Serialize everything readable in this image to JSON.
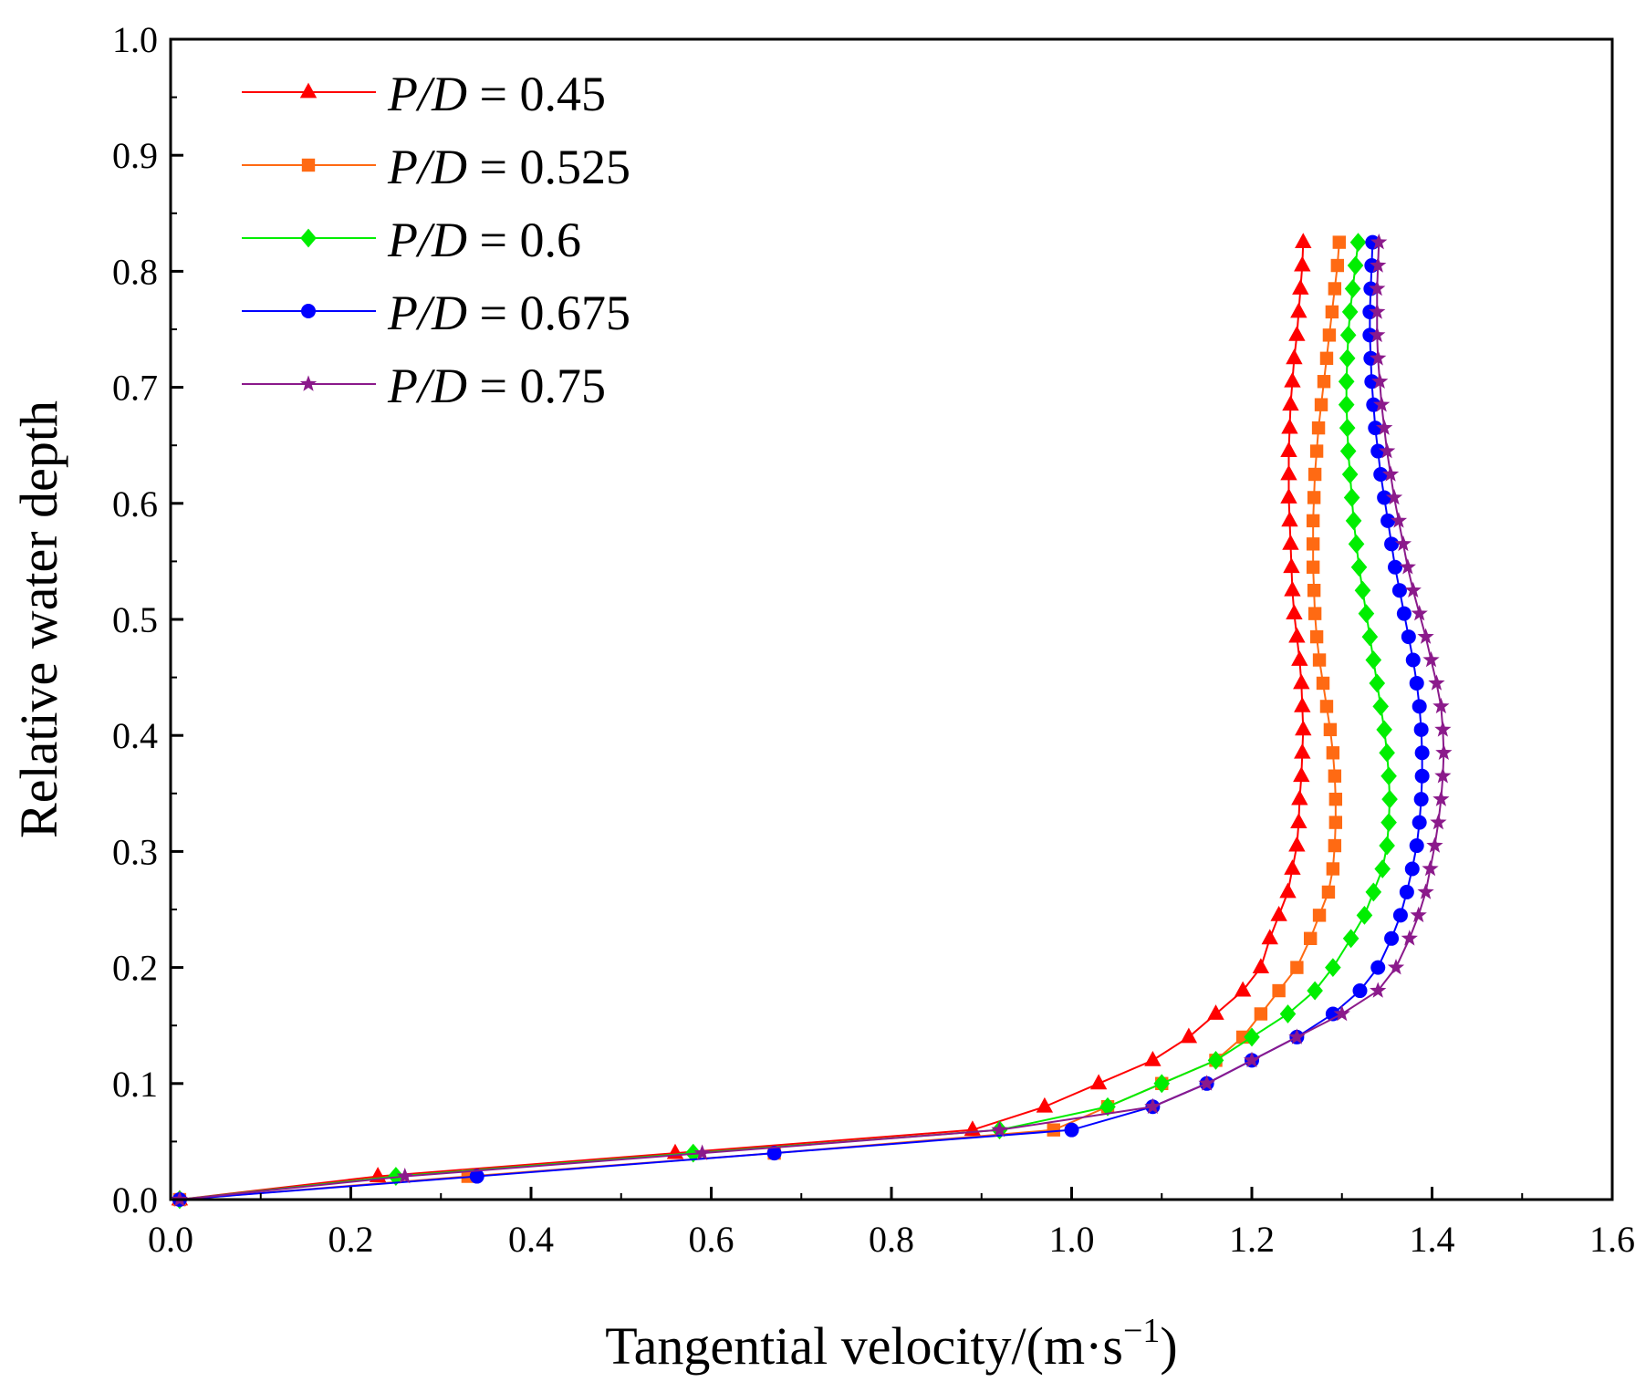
{
  "chart_data": {
    "type": "line",
    "title": "",
    "xlabel": "Tangential velocity/(m·s",
    "xlabel_sup": "−1",
    "xlabel_close": ")",
    "ylabel": "Relative water depth",
    "xlim": [
      0.0,
      1.6
    ],
    "ylim": [
      0.0,
      1.0
    ],
    "x_ticks": [
      "0.0",
      "0.2",
      "0.4",
      "0.6",
      "0.8",
      "1.0",
      "1.2",
      "1.4",
      "1.6"
    ],
    "y_ticks": [
      "0.0",
      "0.1",
      "0.2",
      "0.3",
      "0.4",
      "0.5",
      "0.6",
      "0.7",
      "0.8",
      "0.9",
      "1.0"
    ],
    "grid": false,
    "legend_position": "top-left",
    "series": [
      {
        "name": "0.45",
        "legend_prefix": "P/D",
        "color": "#ff0000",
        "marker": "triangle",
        "x": [
          0.01,
          0.23,
          0.56,
          0.89,
          0.97,
          1.03,
          1.09,
          1.13,
          1.16,
          1.19,
          1.21,
          1.22,
          1.23,
          1.24,
          1.245,
          1.25,
          1.252,
          1.253,
          1.255,
          1.256,
          1.257,
          1.256,
          1.255,
          1.253,
          1.25,
          1.247,
          1.245,
          1.244,
          1.243,
          1.242,
          1.241,
          1.241,
          1.241,
          1.242,
          1.243,
          1.245,
          1.247,
          1.25,
          1.252,
          1.254,
          1.256,
          1.257
        ],
        "y": [
          0.0,
          0.02,
          0.04,
          0.06,
          0.08,
          0.1,
          0.12,
          0.14,
          0.16,
          0.18,
          0.2,
          0.225,
          0.245,
          0.265,
          0.285,
          0.305,
          0.325,
          0.345,
          0.365,
          0.385,
          0.405,
          0.425,
          0.445,
          0.465,
          0.485,
          0.505,
          0.525,
          0.545,
          0.565,
          0.585,
          0.605,
          0.625,
          0.645,
          0.665,
          0.685,
          0.705,
          0.725,
          0.745,
          0.765,
          0.785,
          0.805,
          0.825
        ]
      },
      {
        "name": "0.525",
        "legend_prefix": "P/D",
        "color": "#ff6a13",
        "marker": "square",
        "x": [
          0.01,
          0.33,
          0.67,
          0.98,
          1.04,
          1.1,
          1.16,
          1.19,
          1.21,
          1.23,
          1.25,
          1.265,
          1.275,
          1.285,
          1.29,
          1.292,
          1.293,
          1.293,
          1.292,
          1.29,
          1.287,
          1.283,
          1.279,
          1.275,
          1.272,
          1.27,
          1.269,
          1.268,
          1.268,
          1.268,
          1.269,
          1.27,
          1.272,
          1.274,
          1.277,
          1.28,
          1.283,
          1.286,
          1.289,
          1.292,
          1.295,
          1.297
        ],
        "y": [
          0.0,
          0.02,
          0.04,
          0.06,
          0.08,
          0.1,
          0.12,
          0.14,
          0.16,
          0.18,
          0.2,
          0.225,
          0.245,
          0.265,
          0.285,
          0.305,
          0.325,
          0.345,
          0.365,
          0.385,
          0.405,
          0.425,
          0.445,
          0.465,
          0.485,
          0.505,
          0.525,
          0.545,
          0.565,
          0.585,
          0.605,
          0.625,
          0.645,
          0.665,
          0.685,
          0.705,
          0.725,
          0.745,
          0.765,
          0.785,
          0.805,
          0.825
        ]
      },
      {
        "name": "0.6",
        "legend_prefix": "P/D",
        "color": "#00ee00",
        "marker": "diamond",
        "x": [
          0.01,
          0.25,
          0.58,
          0.92,
          1.04,
          1.1,
          1.16,
          1.2,
          1.24,
          1.27,
          1.29,
          1.31,
          1.325,
          1.335,
          1.345,
          1.35,
          1.352,
          1.353,
          1.352,
          1.35,
          1.347,
          1.343,
          1.339,
          1.335,
          1.331,
          1.327,
          1.323,
          1.319,
          1.316,
          1.313,
          1.311,
          1.309,
          1.307,
          1.306,
          1.305,
          1.305,
          1.306,
          1.307,
          1.309,
          1.312,
          1.315,
          1.318
        ],
        "y": [
          0.0,
          0.02,
          0.04,
          0.06,
          0.08,
          0.1,
          0.12,
          0.14,
          0.16,
          0.18,
          0.2,
          0.225,
          0.245,
          0.265,
          0.285,
          0.305,
          0.325,
          0.345,
          0.365,
          0.385,
          0.405,
          0.425,
          0.445,
          0.465,
          0.485,
          0.505,
          0.525,
          0.545,
          0.565,
          0.585,
          0.605,
          0.625,
          0.645,
          0.665,
          0.685,
          0.705,
          0.725,
          0.745,
          0.765,
          0.785,
          0.805,
          0.825
        ]
      },
      {
        "name": "0.675",
        "legend_prefix": "P/D",
        "color": "#0000ff",
        "marker": "circle",
        "x": [
          0.01,
          0.34,
          0.67,
          1.0,
          1.09,
          1.15,
          1.2,
          1.25,
          1.29,
          1.32,
          1.34,
          1.355,
          1.365,
          1.372,
          1.378,
          1.383,
          1.386,
          1.388,
          1.389,
          1.389,
          1.388,
          1.386,
          1.383,
          1.379,
          1.374,
          1.369,
          1.364,
          1.359,
          1.355,
          1.351,
          1.347,
          1.343,
          1.34,
          1.337,
          1.335,
          1.333,
          1.332,
          1.331,
          1.331,
          1.332,
          1.333,
          1.334
        ],
        "y": [
          0.0,
          0.02,
          0.04,
          0.06,
          0.08,
          0.1,
          0.12,
          0.14,
          0.16,
          0.18,
          0.2,
          0.225,
          0.245,
          0.265,
          0.285,
          0.305,
          0.325,
          0.345,
          0.365,
          0.385,
          0.405,
          0.425,
          0.445,
          0.465,
          0.485,
          0.505,
          0.525,
          0.545,
          0.565,
          0.585,
          0.605,
          0.625,
          0.645,
          0.665,
          0.685,
          0.705,
          0.725,
          0.745,
          0.765,
          0.785,
          0.805,
          0.825
        ]
      },
      {
        "name": "0.75",
        "legend_prefix": "P/D",
        "color": "#8b1a8b",
        "marker": "star",
        "x": [
          0.01,
          0.26,
          0.59,
          0.92,
          1.09,
          1.15,
          1.2,
          1.25,
          1.3,
          1.34,
          1.36,
          1.375,
          1.385,
          1.393,
          1.398,
          1.403,
          1.407,
          1.41,
          1.412,
          1.413,
          1.412,
          1.41,
          1.405,
          1.399,
          1.393,
          1.386,
          1.379,
          1.373,
          1.368,
          1.363,
          1.358,
          1.354,
          1.35,
          1.347,
          1.344,
          1.342,
          1.34,
          1.339,
          1.339,
          1.339,
          1.34,
          1.341
        ],
        "y": [
          0.0,
          0.02,
          0.04,
          0.06,
          0.08,
          0.1,
          0.12,
          0.14,
          0.16,
          0.18,
          0.2,
          0.225,
          0.245,
          0.265,
          0.285,
          0.305,
          0.325,
          0.345,
          0.365,
          0.385,
          0.405,
          0.425,
          0.445,
          0.465,
          0.485,
          0.505,
          0.525,
          0.545,
          0.565,
          0.585,
          0.605,
          0.625,
          0.645,
          0.665,
          0.685,
          0.705,
          0.725,
          0.745,
          0.765,
          0.785,
          0.805,
          0.825
        ]
      }
    ]
  }
}
